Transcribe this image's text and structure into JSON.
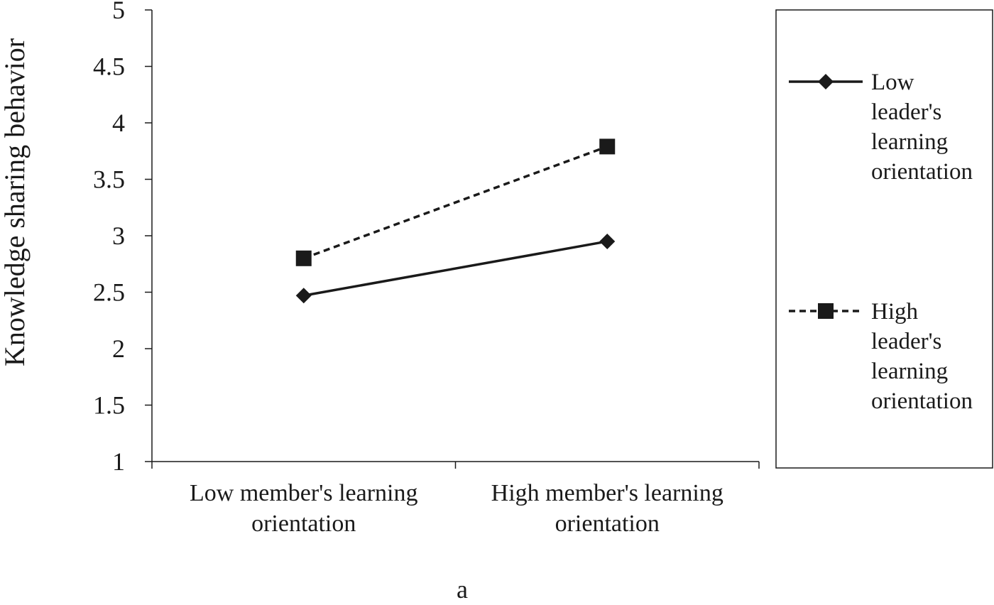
{
  "chart_data": {
    "type": "line",
    "title": "",
    "ylabel": "Knowledge sharing behavior",
    "xlabel": "",
    "caption": "a",
    "categories": [
      "Low member's learning orientation",
      "High member's learning orientation"
    ],
    "category_lines": [
      [
        "Low member's learning",
        "orientation"
      ],
      [
        "High member's learning",
        "orientation"
      ]
    ],
    "ylim": [
      1,
      5
    ],
    "yticks": [
      "1",
      "1.5",
      "2",
      "2.5",
      "3",
      "3.5",
      "4",
      "4.5",
      "5"
    ],
    "ytick_values": [
      1,
      1.5,
      2,
      2.5,
      3,
      3.5,
      4,
      4.5,
      5
    ],
    "grid": false,
    "legend_position": "right",
    "series": [
      {
        "name": "Low leader's learning orientation",
        "legend_lines": [
          "Low",
          "leader's",
          "learning",
          "orientation"
        ],
        "values": [
          2.47,
          2.95
        ],
        "marker": "diamond",
        "line_style": "solid",
        "color": "#1a1a1a"
      },
      {
        "name": "High leader's learning orientation",
        "legend_lines": [
          "High",
          "leader's",
          "learning",
          "orientation"
        ],
        "values": [
          2.8,
          3.79
        ],
        "marker": "square",
        "line_style": "dashed",
        "color": "#1a1a1a"
      }
    ]
  }
}
